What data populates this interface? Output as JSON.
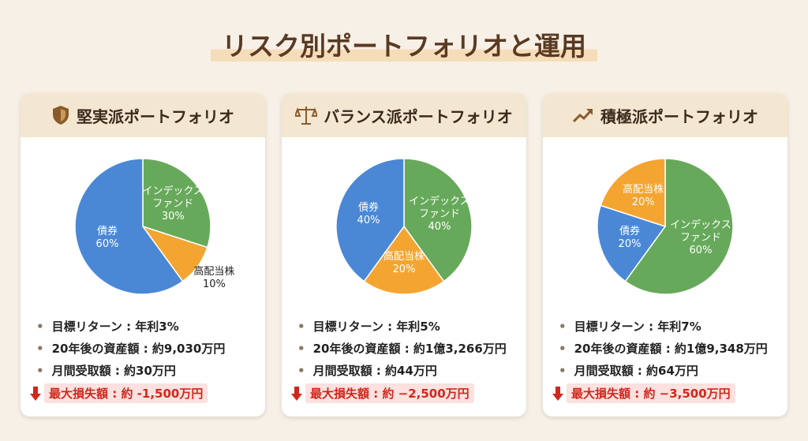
{
  "title": "リスク別ポートフォリオと運用",
  "chart_data": [
    {
      "type": "pie",
      "title": "堅実派ポートフォリオ",
      "categories": [
        "インデックス\nファンド",
        "高配当株",
        "債券"
      ],
      "values": [
        30,
        10,
        60
      ],
      "value_labels": [
        "30%",
        "10%",
        "60%"
      ],
      "colors": [
        "#67a95b",
        "#f4a531",
        "#4a88d6"
      ]
    },
    {
      "type": "pie",
      "title": "バランス派ポートフォリオ",
      "categories": [
        "インデックス\nファンド",
        "高配当株",
        "債券"
      ],
      "values": [
        40,
        20,
        40
      ],
      "value_labels": [
        "40%",
        "20%",
        "40%"
      ],
      "colors": [
        "#67a95b",
        "#f4a531",
        "#4a88d6"
      ]
    },
    {
      "type": "pie",
      "title": "積極派ポートフォリオ",
      "categories": [
        "インデックス\nファンド",
        "債券",
        "高配当株"
      ],
      "values": [
        60,
        20,
        20
      ],
      "value_labels": [
        "60%",
        "20%",
        "20%"
      ],
      "colors": [
        "#67a95b",
        "#4a88d6",
        "#f4a531"
      ]
    }
  ],
  "cards": [
    {
      "bullets": [
        "目標リターン : 年利3%",
        "20年後の資産額 : 約9,030万円",
        "月間受取額 : 約30万円"
      ],
      "loss": "最大損失額 : 約 -1,500万円"
    },
    {
      "bullets": [
        "目標リターン : 年利5%",
        "20年後の資産額 : 約1億3,266万円",
        "月間受取額 : 約44万円"
      ],
      "loss": "最大損失額 : 約 −2,500万円"
    },
    {
      "bullets": [
        "目標リターン : 年利7%",
        "20年後の資産額 : 約1億9,348万円",
        "月間受取額 : 約64万円"
      ],
      "loss": "最大損失額 : 約 −3,500万円"
    }
  ]
}
